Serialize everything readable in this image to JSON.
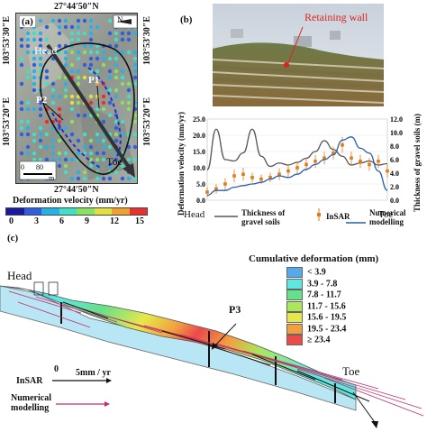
{
  "panel_a": {
    "label": "(a)",
    "coord_top": "27°44′50″N",
    "coord_bottom": "27°44′50″N",
    "coord_left_top": "103°53′30″E",
    "coord_left_bottom": "103°53′20″E",
    "coord_right_top": "103°53′30″E",
    "coord_right_bottom": "103°53′20″E",
    "head": "Head",
    "toe": "Toe",
    "p1": "P1",
    "p2": "P2",
    "scale_0": "0",
    "scale_80": "80",
    "scale_m": "m",
    "north": "N",
    "colorbar_title": "Deformation velocity (mm/yr)",
    "colorbar_ticks": [
      "0",
      "3",
      "6",
      "9",
      "12",
      "15"
    ],
    "colorbar_colors": [
      "#1a1aa0",
      "#2f5fe0",
      "#28b0e8",
      "#40e0c8",
      "#8ae060",
      "#e0e040",
      "#f0a030",
      "#e83030"
    ]
  },
  "panel_b": {
    "label": "(b)",
    "photo_label": "Retaining wall",
    "head": "Head",
    "toe": "Toe",
    "ylabel_left": "Deformation velocity (mm/yr)",
    "ylabel_right": "Thickness of gravel soils (m)",
    "yticks_left": [
      "0.0",
      "5.0",
      "10.0",
      "15.0",
      "20.0",
      "25.0"
    ],
    "yticks_right": [
      "0.0",
      "2.0",
      "4.0",
      "6.0",
      "8.0",
      "10.0",
      "12.0"
    ],
    "legend": {
      "thickness": "Thickness of gravel soils",
      "insar": "InSAR",
      "numerical": "Numerical modelling"
    }
  },
  "chart_data": {
    "type": "line",
    "x": [
      0,
      1,
      2,
      3,
      4,
      5,
      6,
      7,
      8,
      9,
      10,
      11,
      12,
      13,
      14,
      15,
      16,
      17,
      18,
      19,
      20
    ],
    "series": [
      {
        "name": "Thickness of gravel soils",
        "axis": "right",
        "color": "#555555",
        "values": [
          4.5,
          10.5,
          6,
          5.8,
          7,
          10.5,
          6.5,
          5,
          5.5,
          5.2,
          5.6,
          6.2,
          7.2,
          8.8,
          7.5,
          6.5,
          5.2,
          5.5,
          5.8,
          5.2,
          5.4
        ]
      },
      {
        "name": "InSAR",
        "axis": "left",
        "color": "#e07a1a",
        "values": [
          2.5,
          3.5,
          5,
          7.5,
          8,
          7,
          6.5,
          7,
          8,
          9,
          10,
          11,
          12,
          13,
          14.5,
          17,
          13,
          12,
          11,
          12,
          9
        ],
        "errors": [
          1.5,
          1.5,
          1.8,
          2,
          2,
          1.5,
          1.5,
          1.5,
          1.8,
          2,
          2,
          2,
          2,
          2,
          2,
          2.5,
          2,
          2,
          2,
          2,
          2
        ]
      },
      {
        "name": "Numerical modelling",
        "axis": "left",
        "color": "#2a5fb0",
        "values": [
          1.5,
          3,
          3,
          4,
          4.5,
          5,
          5.5,
          6.5,
          7.5,
          7,
          8,
          9.5,
          11,
          12.5,
          14,
          18.5,
          19.5,
          16,
          14.5,
          9,
          3
        ]
      }
    ],
    "ylim_left": [
      0,
      25
    ],
    "ylim_right": [
      0,
      12
    ]
  },
  "panel_c": {
    "label": "(c)",
    "head": "Head",
    "toe": "Toe",
    "p3": "P3",
    "legend_title": "Cumulative deformation (mm)",
    "legend_items": [
      {
        "label": "< 3.9",
        "color": "#55aaee"
      },
      {
        "label": "3.9 - 7.8",
        "color": "#5ee8e0"
      },
      {
        "label": "7.8 - 11.7",
        "color": "#66e08a"
      },
      {
        "label": "11.7 - 15.6",
        "color": "#a8e85a"
      },
      {
        "label": "15.6 - 19.5",
        "color": "#e6e84a"
      },
      {
        "label": "19.5 - 23.4",
        "color": "#f0a040"
      },
      {
        "label": "≥ 23.4",
        "color": "#ec4a4a"
      }
    ],
    "insar_label": "InSAR",
    "scale_0": "0",
    "scale_label": "5mm / yr",
    "numerical_label": "Numerical\nmodelling"
  }
}
